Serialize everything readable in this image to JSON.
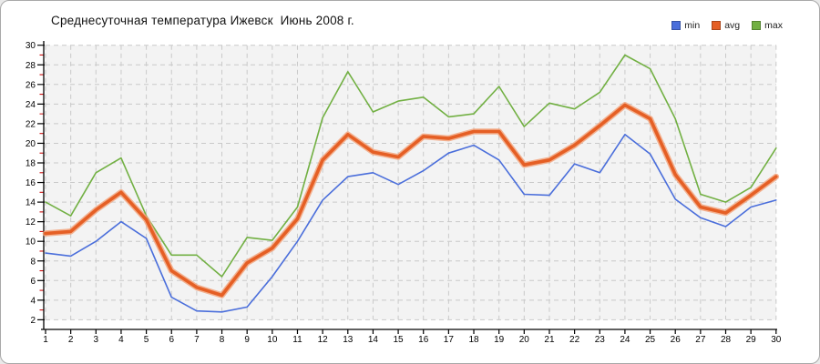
{
  "window": {
    "background": "#ffffff",
    "border_color": "#a9a9a9"
  },
  "chart_data": {
    "type": "line",
    "title": "Среднесуточная температура Ижевск  Июнь 2008 г.",
    "xlabel": "",
    "ylabel": "",
    "x": [
      1,
      2,
      3,
      4,
      5,
      6,
      7,
      8,
      9,
      10,
      11,
      12,
      13,
      14,
      15,
      16,
      17,
      18,
      19,
      20,
      21,
      22,
      23,
      24,
      25,
      26,
      27,
      28,
      29,
      30
    ],
    "x_tick_labels": [
      "1",
      "2",
      "3",
      "4",
      "5",
      "6",
      "7",
      "8",
      "9",
      "10",
      "11",
      "12",
      "13",
      "14",
      "15",
      "16",
      "17",
      "18",
      "19",
      "20",
      "21",
      "22",
      "23",
      "24",
      "25",
      "26",
      "27",
      "28",
      "29",
      "30"
    ],
    "ylim": [
      2,
      30
    ],
    "y_tick_step": 2,
    "y_tick_labels": [
      "30",
      "28",
      "26",
      "24",
      "22",
      "20",
      "18",
      "16",
      "14",
      "12",
      "10",
      "8",
      "6",
      "4",
      "2"
    ],
    "grid": "dashed",
    "legend_position": "top-right",
    "plot_bg": "#f3f3f3",
    "grid_color": "#c9c9c9",
    "axis_color": "#000000",
    "minor_tick_color": "#cc1111",
    "series": [
      {
        "name": "min",
        "color": "#4a6edb",
        "width": 1.6,
        "values": [
          8.8,
          8.5,
          10.0,
          12.0,
          10.3,
          4.3,
          2.9,
          2.8,
          3.3,
          6.4,
          10.0,
          14.2,
          16.6,
          17.0,
          15.8,
          17.2,
          19.0,
          19.8,
          18.3,
          14.8,
          14.7,
          17.9,
          17.0,
          20.9,
          18.9,
          14.3,
          12.4,
          11.5,
          13.5,
          14.2
        ]
      },
      {
        "name": "avg",
        "color": "#e55f25",
        "halo": "#f2a47e",
        "width": 3.6,
        "values": [
          10.8,
          11.0,
          13.2,
          15.0,
          12.2,
          7.0,
          5.3,
          4.5,
          7.8,
          9.3,
          12.3,
          18.3,
          20.9,
          19.1,
          18.6,
          20.7,
          20.5,
          21.2,
          21.2,
          17.8,
          18.3,
          19.8,
          21.8,
          23.9,
          22.5,
          16.8,
          13.5,
          12.9,
          14.7,
          16.6
        ]
      },
      {
        "name": "max",
        "color": "#72b043",
        "width": 1.6,
        "values": [
          14.0,
          12.6,
          17.0,
          18.5,
          12.6,
          8.6,
          8.6,
          6.4,
          10.4,
          10.1,
          13.5,
          22.6,
          27.3,
          23.2,
          24.3,
          24.7,
          22.7,
          23.0,
          25.8,
          21.7,
          24.1,
          23.5,
          25.2,
          29.0,
          27.6,
          22.5,
          14.8,
          14.0,
          15.5,
          19.5
        ]
      }
    ]
  }
}
